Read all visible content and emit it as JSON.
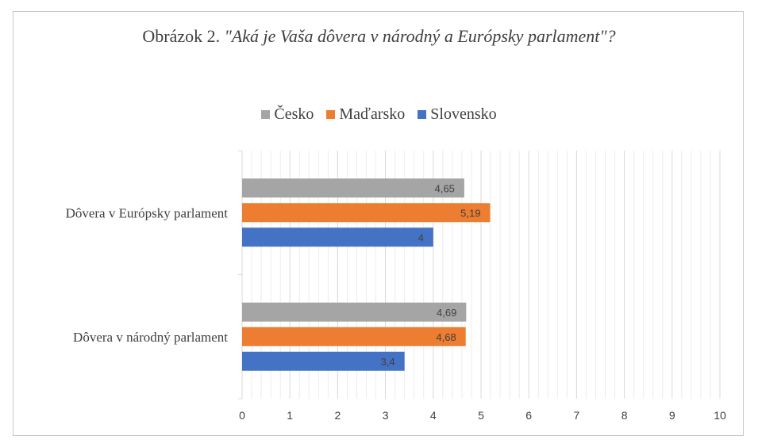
{
  "title": {
    "prefix": "Obrázok 2. ",
    "quote": "\"Aká je Vaša dôvera v národný a Európsky parlament\"?"
  },
  "chart_data": {
    "type": "bar",
    "orientation": "horizontal",
    "categories": [
      "Dôvera v Európsky parlament",
      "Dôvera v národný parlament"
    ],
    "series": [
      {
        "name": "Česko",
        "color": "#a5a5a5",
        "values": [
          4.65,
          4.69
        ],
        "labels": [
          "4,65",
          "4,69"
        ]
      },
      {
        "name": "Maďarsko",
        "color": "#ed7d31",
        "values": [
          5.19,
          4.68
        ],
        "labels": [
          "5,19",
          "4,68"
        ]
      },
      {
        "name": "Slovensko",
        "color": "#4472c4",
        "values": [
          4,
          3.4
        ],
        "labels": [
          "4",
          "3,4"
        ]
      }
    ],
    "xlim": [
      0,
      10
    ],
    "xticks": [
      0,
      1,
      2,
      3,
      4,
      5,
      6,
      7,
      8,
      9,
      10
    ],
    "grid": true,
    "legend": "top-center",
    "data_labels": "inside-end"
  }
}
